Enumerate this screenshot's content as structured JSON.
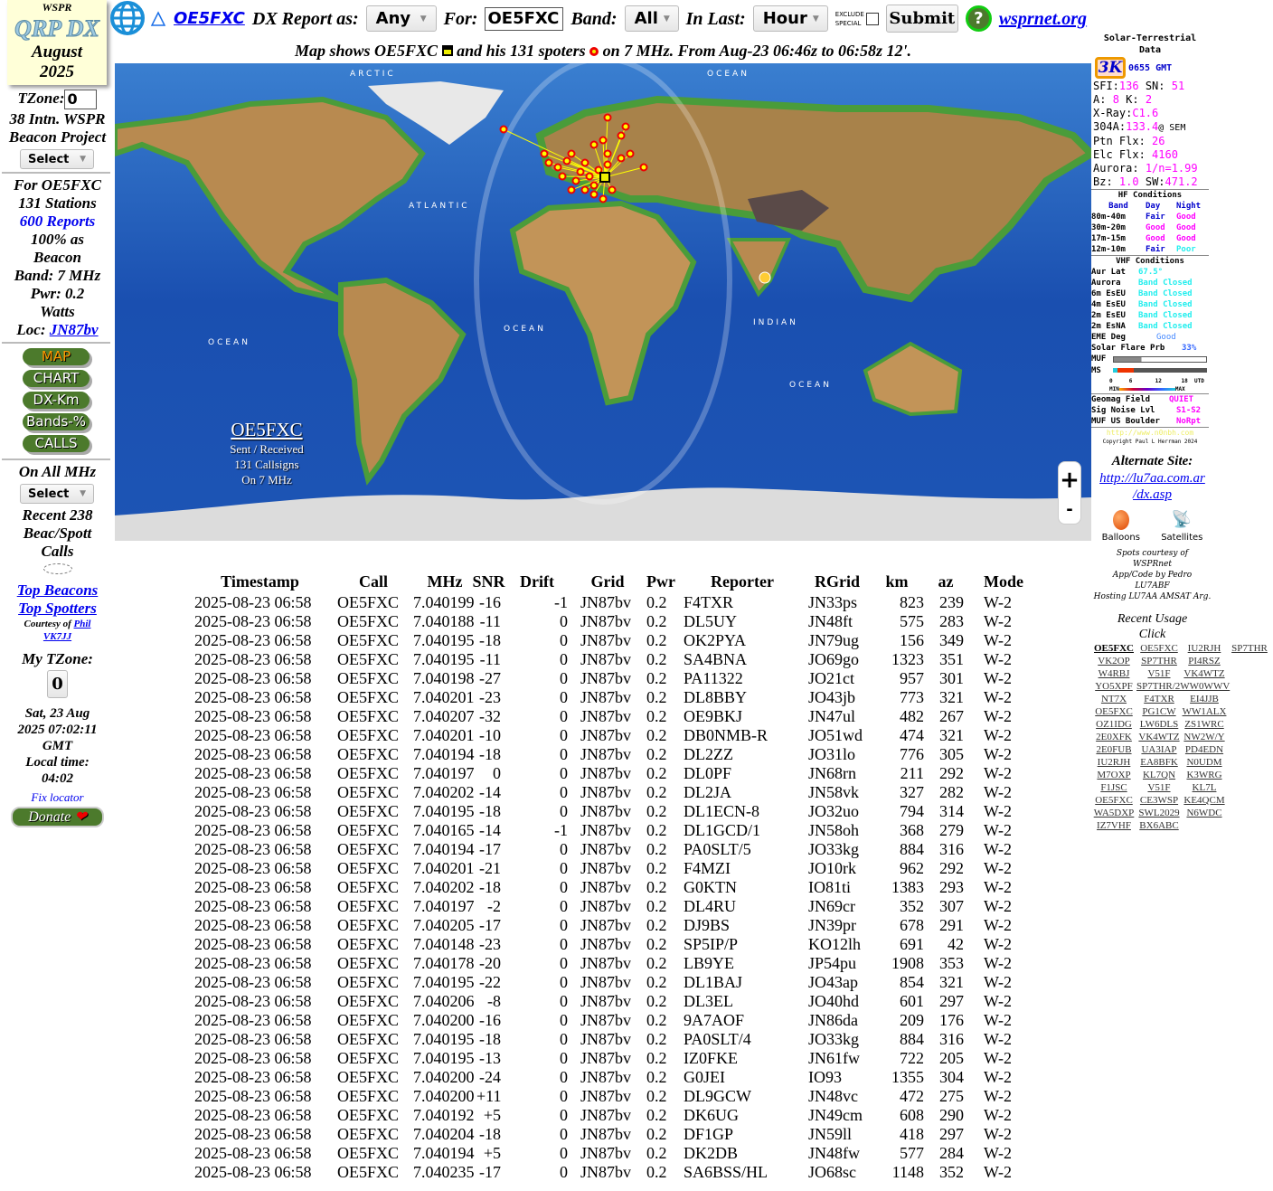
{
  "logo": {
    "top": "WSPR",
    "name": "QRP DX",
    "month": "August",
    "year": "2025"
  },
  "header": {
    "call_link": "OE5FXC",
    "report_as_label": "DX Report as:",
    "report_as_value": "Any",
    "for_label": "For:",
    "for_value": "OE5FXC",
    "band_label": "Band:",
    "band_value": "All",
    "in_last_label": "In Last:",
    "in_last_value": "Hour",
    "exclude_label_1": "EXCLUDE",
    "exclude_label_2": "SPECIAL",
    "exclude_checked": false,
    "submit": "Submit",
    "help_icon": "question-mark-icon",
    "wsprnet_link": "wsprnet.org"
  },
  "subheader": {
    "part1": "Map shows OE5FXC",
    "part2": "and his 131 spoters",
    "part3": "on 7 MHz. From Aug-23 06:46z to 06:58z 12'."
  },
  "left": {
    "tzone_label": "TZone:",
    "tzone_value": "0",
    "project_1": "38 Intn. WSPR",
    "project_2": "Beacon Project",
    "select": "Select",
    "for_line": "For OE5FXC",
    "stations": "131 Stations",
    "reports_link": "600 Reports",
    "beacon_1": "100% as",
    "beacon_2": "Beacon",
    "band": "Band: 7 MHz",
    "pwr_1": "Pwr: 0.2",
    "pwr_2": "Watts",
    "loc_label": "Loc:",
    "loc_link": "JN87bv",
    "nav": [
      "MAP",
      "CHART",
      "DX-Km",
      "Bands-%",
      "CALLS"
    ],
    "all_mhz": "On All MHz",
    "select2": "Select",
    "recent_1": "Recent 238",
    "recent_2": "Beac/Spott",
    "recent_3": "Calls",
    "top_beacons": "Top Beacons",
    "top_spotters": "Top Spotters",
    "courtesy": "Courtesy of",
    "phil": "Phil",
    "vk7jj": "VK7JJ",
    "my_tzone": "My TZone:",
    "my_tzone_value": "0",
    "date_1": "Sat, 23 Aug",
    "date_2": "2025 07:02:11",
    "date_3": "GMT",
    "local_1": "Local time:",
    "local_2": "04:02",
    "fix_locator": "Fix locator",
    "donate": "Donate"
  },
  "map": {
    "labels": [
      "ARCTIC",
      "OCEAN",
      "ATLANTIC",
      "OCEAN",
      "OCEAN",
      "INDIAN",
      "OCEAN"
    ],
    "call": "OE5FXC",
    "sent": "Sent / Received",
    "callsigns": "131 Callsigns",
    "band": "On 7 MHz",
    "zoom_in": "+",
    "zoom_out": "-"
  },
  "solar": {
    "title": "Solar-Terrestrial Data",
    "badge": "3K",
    "time": "0655 GMT",
    "sfi_label": "SFI:",
    "sfi": "136",
    "sn_label": "SN:",
    "sn": "51",
    "a_label": "A:",
    "a": "8",
    "k_label": "K:",
    "k": "2",
    "xray_label": "X-Ray:",
    "xray": "C1.6",
    "f304_label": "304A:",
    "f304": "133.4",
    "f304_src": "@ SEM",
    "ptn_label": "Ptn Flx:",
    "ptn": "26",
    "elc_label": "Elc Flx:",
    "elc": "4160",
    "aurora_label": "Aurora:",
    "aurora": "1/n=1.99",
    "bz_label": "Bz:",
    "bz": "1.0",
    "sw_label": "SW:",
    "sw": "471.2",
    "hf_title": "HF Conditions",
    "hf_head": [
      "Band",
      "Day",
      "Night"
    ],
    "hf": [
      {
        "band": "80m-40m",
        "day": "Fair",
        "night": "Good"
      },
      {
        "band": "30m-20m",
        "day": "Good",
        "night": "Good"
      },
      {
        "band": "17m-15m",
        "day": "Good",
        "night": "Good"
      },
      {
        "band": "12m-10m",
        "day": "Fair",
        "night": "Poor"
      }
    ],
    "vhf_title": "VHF Conditions",
    "aur_lat_label": "Aur Lat",
    "aur_lat": "67.5°",
    "vhf": [
      {
        "name": "Aurora",
        "status": "Band Closed"
      },
      {
        "name": "6m EsEU",
        "status": "Band Closed"
      },
      {
        "name": "4m EsEU",
        "status": "Band Closed"
      },
      {
        "name": "2m EsEU",
        "status": "Band Closed"
      },
      {
        "name": "2m EsNA",
        "status": "Band Closed"
      }
    ],
    "eme_label": "EME Deg",
    "eme": "Good",
    "flare_label": "Solar Flare Prb",
    "flare": "33%",
    "muf_label": "MUF",
    "ms_label": "MS",
    "scale": [
      "0",
      "6",
      "12",
      "18",
      "UTD"
    ],
    "scale_min": "MIN",
    "scale_max": "MAX",
    "geomag_label": "Geomag Field",
    "geomag": "QUIET",
    "noise_label": "Sig Noise Lvl",
    "noise": "S1-S2",
    "boulder_label": "MUF US Boulder",
    "boulder": "NoRpt",
    "url": "http://www.n0nbh.com",
    "copyright": "Copyright Paul L Herrman 2024"
  },
  "right": {
    "alt_title": "Alternate Site:",
    "alt_link_1": "http://lu7aa.com.ar",
    "alt_link_2": "/dx.asp",
    "balloons": "Balloons",
    "satellites": "Satellites",
    "credit_1": "Spots courtesy of",
    "credit_2": "WSPRnet",
    "credit_3": "App/Code by Pedro",
    "credit_4": "LU7ABF",
    "credit_5": "Hosting LU7AA AMSAT Arg.",
    "recent_title": "Recent Usage",
    "recent_click": "Click",
    "recent": [
      [
        "OE5FXC",
        "OE5FXC",
        "IU2RJH",
        "SP7THR"
      ],
      [
        "VK2OP",
        "SP7THR",
        "PI4RSZ"
      ],
      [
        "W4RBJ",
        "V51F",
        "VK4WTZ"
      ],
      [
        "YO5XPF",
        "SP7THR/2WW0WWV"
      ],
      [
        "NT7X",
        "F4TXR",
        "EI4JJB"
      ],
      [
        "OE5FXC",
        "PG1CW",
        "WW1ALX"
      ],
      [
        "OZ1IDG",
        "LW6DLS",
        "ZS1WRC"
      ],
      [
        "2E0XFK",
        "VK4WTZ",
        "NW2W/Y"
      ],
      [
        "2E0FUB",
        "UA3IAP",
        "PD4EDN"
      ],
      [
        "IU2RJH",
        "EA8BFK",
        "N0UDM"
      ],
      [
        "M7OXP",
        "KL7QN",
        "K3WRG"
      ],
      [
        "F1JSC",
        "V51F",
        "KL7L"
      ],
      [
        "OE5FXC",
        "CE3WSP",
        "KE4QCM"
      ],
      [
        "WA5DXP",
        "SWL2029",
        "N6WDC"
      ],
      [
        "IZ7VHF",
        "BX6ABC"
      ]
    ]
  },
  "table": {
    "headers": [
      "Timestamp",
      "Call",
      "MHz",
      "SNR",
      "Drift",
      "Grid",
      "Pwr",
      "Reporter",
      "RGrid",
      "km",
      "az",
      "Mode"
    ],
    "rows": [
      [
        "2025-08-23 06:58",
        "OE5FXC",
        "7.040199",
        "-16",
        "-1",
        "JN87bv",
        "0.2",
        "F4TXR",
        "JN33ps",
        "823",
        "239",
        "W-2"
      ],
      [
        "2025-08-23 06:58",
        "OE5FXC",
        "7.040188",
        "-11",
        "0",
        "JN87bv",
        "0.2",
        "DL5UY",
        "JN48ft",
        "575",
        "283",
        "W-2"
      ],
      [
        "2025-08-23 06:58",
        "OE5FXC",
        "7.040195",
        "-18",
        "0",
        "JN87bv",
        "0.2",
        "OK2PYA",
        "JN79ug",
        "156",
        "349",
        "W-2"
      ],
      [
        "2025-08-23 06:58",
        "OE5FXC",
        "7.040195",
        "-11",
        "0",
        "JN87bv",
        "0.2",
        "SA4BNA",
        "JO69go",
        "1323",
        "351",
        "W-2"
      ],
      [
        "2025-08-23 06:58",
        "OE5FXC",
        "7.040198",
        "-27",
        "0",
        "JN87bv",
        "0.2",
        "PA11322",
        "JO21ct",
        "957",
        "301",
        "W-2"
      ],
      [
        "2025-08-23 06:58",
        "OE5FXC",
        "7.040201",
        "-23",
        "0",
        "JN87bv",
        "0.2",
        "DL8BBY",
        "JO43jb",
        "773",
        "321",
        "W-2"
      ],
      [
        "2025-08-23 06:58",
        "OE5FXC",
        "7.040207",
        "-32",
        "0",
        "JN87bv",
        "0.2",
        "OE9BKJ",
        "JN47ul",
        "482",
        "267",
        "W-2"
      ],
      [
        "2025-08-23 06:58",
        "OE5FXC",
        "7.040201",
        "-10",
        "0",
        "JN87bv",
        "0.2",
        "DB0NMB-R",
        "JO51wd",
        "474",
        "321",
        "W-2"
      ],
      [
        "2025-08-23 06:58",
        "OE5FXC",
        "7.040194",
        "-18",
        "0",
        "JN87bv",
        "0.2",
        "DL2ZZ",
        "JO31lo",
        "776",
        "305",
        "W-2"
      ],
      [
        "2025-08-23 06:58",
        "OE5FXC",
        "7.040197",
        "0",
        "0",
        "JN87bv",
        "0.2",
        "DL0PF",
        "JN68rn",
        "211",
        "292",
        "W-2"
      ],
      [
        "2025-08-23 06:58",
        "OE5FXC",
        "7.040202",
        "-14",
        "0",
        "JN87bv",
        "0.2",
        "DL2JA",
        "JN58vk",
        "327",
        "282",
        "W-2"
      ],
      [
        "2025-08-23 06:58",
        "OE5FXC",
        "7.040195",
        "-18",
        "0",
        "JN87bv",
        "0.2",
        "DL1ECN-8",
        "JO32uo",
        "794",
        "314",
        "W-2"
      ],
      [
        "2025-08-23 06:58",
        "OE5FXC",
        "7.040165",
        "-14",
        "-1",
        "JN87bv",
        "0.2",
        "DL1GCD/1",
        "JN58oh",
        "368",
        "279",
        "W-2"
      ],
      [
        "2025-08-23 06:58",
        "OE5FXC",
        "7.040194",
        "-17",
        "0",
        "JN87bv",
        "0.2",
        "PA0SLT/5",
        "JO33kg",
        "884",
        "316",
        "W-2"
      ],
      [
        "2025-08-23 06:58",
        "OE5FXC",
        "7.040201",
        "-21",
        "0",
        "JN87bv",
        "0.2",
        "F4MZI",
        "JO10rk",
        "962",
        "292",
        "W-2"
      ],
      [
        "2025-08-23 06:58",
        "OE5FXC",
        "7.040202",
        "-18",
        "0",
        "JN87bv",
        "0.2",
        "G0KTN",
        "IO81ti",
        "1383",
        "293",
        "W-2"
      ],
      [
        "2025-08-23 06:58",
        "OE5FXC",
        "7.040197",
        "-2",
        "0",
        "JN87bv",
        "0.2",
        "DL4RU",
        "JN69cr",
        "352",
        "307",
        "W-2"
      ],
      [
        "2025-08-23 06:58",
        "OE5FXC",
        "7.040205",
        "-17",
        "0",
        "JN87bv",
        "0.2",
        "DJ9BS",
        "JN39pr",
        "678",
        "291",
        "W-2"
      ],
      [
        "2025-08-23 06:58",
        "OE5FXC",
        "7.040148",
        "-23",
        "0",
        "JN87bv",
        "0.2",
        "SP5IP/P",
        "KO12lh",
        "691",
        "42",
        "W-2"
      ],
      [
        "2025-08-23 06:58",
        "OE5FXC",
        "7.040178",
        "-20",
        "0",
        "JN87bv",
        "0.2",
        "LB9YE",
        "JP54pu",
        "1908",
        "353",
        "W-2"
      ],
      [
        "2025-08-23 06:58",
        "OE5FXC",
        "7.040195",
        "-22",
        "0",
        "JN87bv",
        "0.2",
        "DL1BAJ",
        "JO43ap",
        "854",
        "321",
        "W-2"
      ],
      [
        "2025-08-23 06:58",
        "OE5FXC",
        "7.040206",
        "-8",
        "0",
        "JN87bv",
        "0.2",
        "DL3EL",
        "JO40hd",
        "601",
        "297",
        "W-2"
      ],
      [
        "2025-08-23 06:58",
        "OE5FXC",
        "7.040200",
        "-16",
        "0",
        "JN87bv",
        "0.2",
        "9A7AOF",
        "JN86da",
        "209",
        "176",
        "W-2"
      ],
      [
        "2025-08-23 06:58",
        "OE5FXC",
        "7.040195",
        "-18",
        "0",
        "JN87bv",
        "0.2",
        "PA0SLT/4",
        "JO33kg",
        "884",
        "316",
        "W-2"
      ],
      [
        "2025-08-23 06:58",
        "OE5FXC",
        "7.040195",
        "-13",
        "0",
        "JN87bv",
        "0.2",
        "IZ0FKE",
        "JN61fw",
        "722",
        "205",
        "W-2"
      ],
      [
        "2025-08-23 06:58",
        "OE5FXC",
        "7.040200",
        "-24",
        "0",
        "JN87bv",
        "0.2",
        "G0JEI",
        "IO93",
        "1355",
        "304",
        "W-2"
      ],
      [
        "2025-08-23 06:58",
        "OE5FXC",
        "7.040200",
        "+11",
        "0",
        "JN87bv",
        "0.2",
        "DL9GCW",
        "JN48vc",
        "472",
        "275",
        "W-2"
      ],
      [
        "2025-08-23 06:58",
        "OE5FXC",
        "7.040192",
        "+5",
        "0",
        "JN87bv",
        "0.2",
        "DK6UG",
        "JN49cm",
        "608",
        "290",
        "W-2"
      ],
      [
        "2025-08-23 06:58",
        "OE5FXC",
        "7.040204",
        "-18",
        "0",
        "JN87bv",
        "0.2",
        "DF1GP",
        "JN59ll",
        "418",
        "297",
        "W-2"
      ],
      [
        "2025-08-23 06:58",
        "OE5FXC",
        "7.040194",
        "+5",
        "0",
        "JN87bv",
        "0.2",
        "DK2DB",
        "JN48fw",
        "577",
        "284",
        "W-2"
      ],
      [
        "2025-08-23 06:58",
        "OE5FXC",
        "7.040235",
        "-17",
        "0",
        "JN87bv",
        "0.2",
        "SA6BSS/HL",
        "JO68sc",
        "1148",
        "352",
        "W-2"
      ]
    ]
  },
  "colors": {
    "link": "#0000ee",
    "magenta": "#ff00ff",
    "nav_green": "#4c7a2c",
    "map_ocean": "#1a4fb0",
    "spot_red": "#e00000"
  }
}
